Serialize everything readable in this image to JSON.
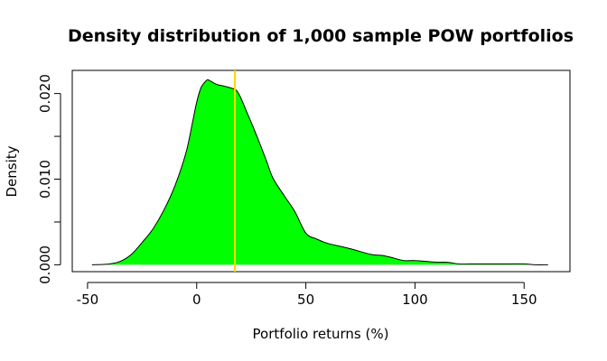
{
  "chart_data": {
    "type": "area",
    "title": "Density distribution of 1,000 sample POW portfolios",
    "xlabel": "Portfolio returns (%)",
    "ylabel": "Density",
    "xlim": [
      -57,
      171
    ],
    "ylim": [
      -0.0008,
      0.0227
    ],
    "x_ticks": [
      -50,
      0,
      50,
      100,
      150
    ],
    "x_tick_labels": [
      "-50",
      "0",
      "50",
      "100",
      "150"
    ],
    "y_ticks": [
      0.0,
      0.005,
      0.01,
      0.015,
      0.02
    ],
    "y_tick_labels": [
      "0.000",
      "",
      "0.010",
      "",
      "0.020"
    ],
    "grid": false,
    "fill_color": "#00ff00",
    "line_color": "#000000",
    "vline": {
      "x": 17.5,
      "color": "#ffd700"
    },
    "series": [
      {
        "x": [
          -48,
          -40,
          -35,
          -30,
          -25,
          -20,
          -15,
          -10,
          -5,
          -2,
          0,
          2,
          4,
          5,
          6,
          8,
          10,
          12,
          15,
          18,
          20,
          23,
          26,
          29,
          32,
          35,
          40,
          45,
          50,
          55,
          60,
          70,
          80,
          85,
          90,
          95,
          100,
          105,
          110,
          115,
          120,
          125,
          130,
          140,
          150,
          155,
          161
        ],
        "y": [
          0.0,
          0.0001,
          0.0004,
          0.0012,
          0.0026,
          0.0042,
          0.0064,
          0.0092,
          0.013,
          0.0165,
          0.019,
          0.0207,
          0.0214,
          0.0216,
          0.0215,
          0.0212,
          0.021,
          0.0209,
          0.0207,
          0.0204,
          0.0196,
          0.0178,
          0.016,
          0.0141,
          0.0121,
          0.0101,
          0.0081,
          0.0062,
          0.0037,
          0.003,
          0.0025,
          0.0019,
          0.0012,
          0.0011,
          0.0008,
          0.0005,
          0.0005,
          0.0004,
          0.0003,
          0.0003,
          0.0001,
          0.0001,
          0.0001,
          0.0001,
          0.0001,
          0.0,
          0.0
        ]
      }
    ]
  }
}
